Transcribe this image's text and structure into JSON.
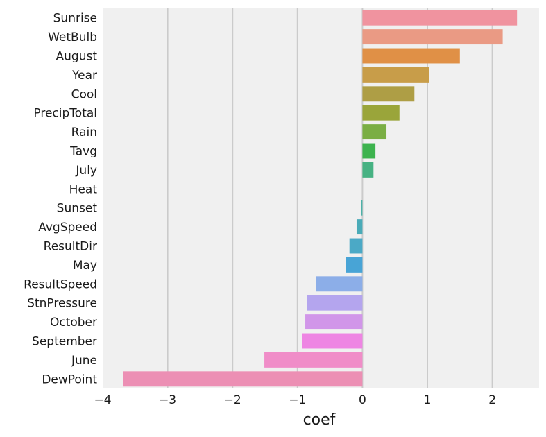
{
  "chart_data": {
    "type": "bar",
    "orientation": "horizontal",
    "title": "",
    "xlabel": "coef",
    "ylabel": "",
    "xlim": [
      -4,
      2.72
    ],
    "x_ticks": [
      -4,
      -3,
      -2,
      -1,
      0,
      1,
      2
    ],
    "x_tick_labels": [
      "−4",
      "−3",
      "−2",
      "−1",
      "0",
      "1",
      "2"
    ],
    "grid": "vertical",
    "background_color": "#f0f0f0",
    "categories": [
      "Sunrise",
      "WetBulb",
      "August",
      "Year",
      "Cool",
      "PrecipTotal",
      "Rain",
      "Tavg",
      "July",
      "Heat",
      "Sunset",
      "AvgSpeed",
      "ResultDir",
      "May",
      "ResultSpeed",
      "StnPressure",
      "October",
      "September",
      "June",
      "DewPoint"
    ],
    "values": [
      2.38,
      2.16,
      1.5,
      1.03,
      0.8,
      0.57,
      0.37,
      0.2,
      0.17,
      0.0,
      -0.02,
      -0.09,
      -0.2,
      -0.25,
      -0.71,
      -0.85,
      -0.88,
      -0.93,
      -1.51,
      -3.69
    ],
    "colors": [
      "#f0939f",
      "#ea9a84",
      "#e09046",
      "#c89d49",
      "#ae9e45",
      "#9aa53a",
      "#7aae44",
      "#3db34e",
      "#47b283",
      "#4bb1a8",
      "#4db1a8",
      "#4aabb8",
      "#4ba9c6",
      "#48a4d6",
      "#8caee8",
      "#b4a5ee",
      "#d196e9",
      "#ee85e3",
      "#f08dc8",
      "#ec8fb4"
    ]
  }
}
